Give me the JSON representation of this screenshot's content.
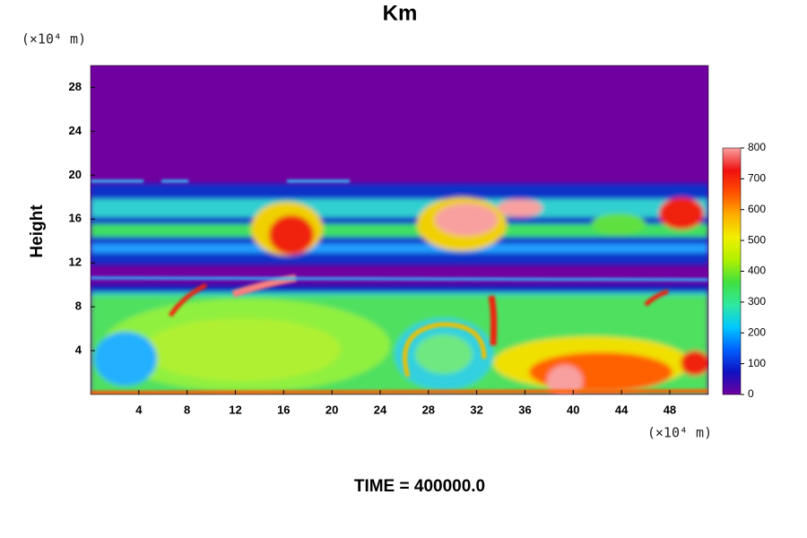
{
  "chart_data": {
    "type": "heatmap",
    "title": "Km",
    "y_unit": "(×10⁴ m)",
    "x_unit": "(×10⁴ m)",
    "ylabel": "Height",
    "xlabel": "TIME = 400000.0",
    "xlim": [
      0,
      51.2
    ],
    "xticks": [
      4,
      8,
      12,
      16,
      20,
      24,
      28,
      32,
      36,
      40,
      44,
      48
    ],
    "ylim": [
      0,
      30
    ],
    "yticks": [
      4,
      8,
      12,
      16,
      20,
      24,
      28
    ],
    "colorbar": {
      "lim": [
        0,
        800
      ],
      "ticks": [
        0,
        100,
        200,
        300,
        400,
        500,
        600,
        700,
        800
      ],
      "colors": [
        "#7000a0",
        "#1010c0",
        "#0060ff",
        "#00c8ff",
        "#30e8a0",
        "#40e040",
        "#b0f000",
        "#f0f000",
        "#ffb000",
        "#ff5000",
        "#f01010",
        "#f8a0a0"
      ]
    }
  }
}
